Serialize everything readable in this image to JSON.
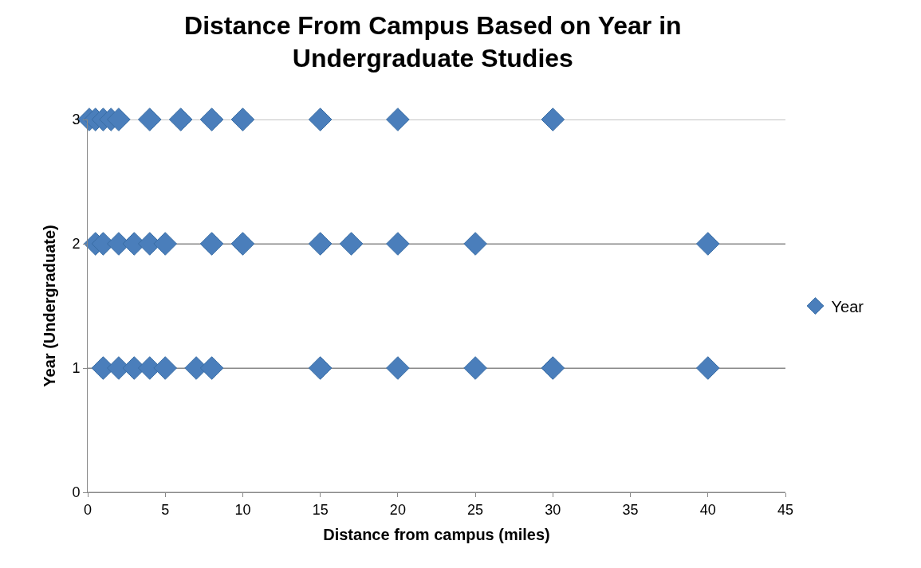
{
  "chart_data": {
    "type": "scatter",
    "title": "Distance From Campus Based on Year in Undergraduate Studies",
    "xlabel": "Distance from campus (miles)",
    "ylabel": "Year (Undergraduate)",
    "series": [
      {
        "name": "Year",
        "color": "#4a7ebb",
        "x": [
          0.1,
          0.5,
          1,
          1.5,
          2,
          4,
          6,
          8,
          10,
          15,
          20,
          30,
          0.5,
          1,
          2,
          3,
          4,
          5,
          8,
          10,
          15,
          17,
          20,
          25,
          40,
          1,
          2,
          3,
          4,
          5,
          7,
          8,
          15,
          20,
          25,
          30,
          40
        ],
        "values": [
          3,
          3,
          3,
          3,
          3,
          3,
          3,
          3,
          3,
          3,
          3,
          3,
          2,
          2,
          2,
          2,
          2,
          2,
          2,
          2,
          2,
          2,
          2,
          2,
          2,
          1,
          1,
          1,
          1,
          1,
          1,
          1,
          1,
          1,
          1,
          1,
          1
        ]
      }
    ],
    "xlim": [
      0,
      45
    ],
    "xticks": [
      0,
      5,
      10,
      15,
      20,
      25,
      30,
      35,
      40,
      45
    ],
    "ylim": [
      0,
      3
    ],
    "yticks": [
      0,
      1,
      2,
      3
    ],
    "grid": "y",
    "legend": "right",
    "marker": "diamond"
  }
}
